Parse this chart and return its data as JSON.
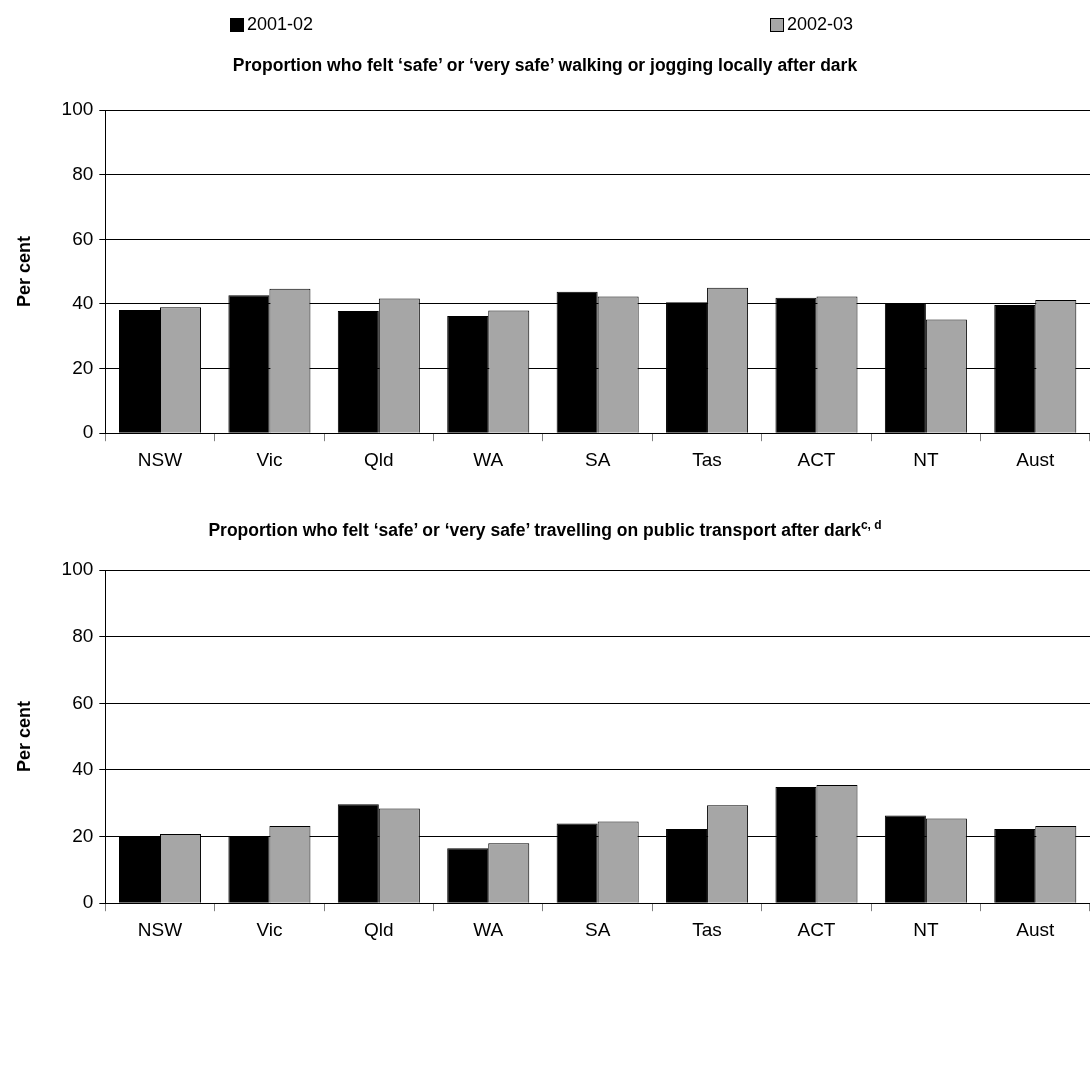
{
  "chart_data": [
    {
      "type": "bar",
      "title": "Proportion who felt ‘safe’ or ‘very safe’ walking or jogging locally after dark",
      "ylabel": "Per cent",
      "categories": [
        "NSW",
        "Vic",
        "Qld",
        "WA",
        "SA",
        "Tas",
        "ACT",
        "NT",
        "Aust"
      ],
      "series": [
        {
          "name": "2001-02",
          "color": "#000000",
          "values": [
            38.1,
            42.7,
            37.8,
            36.3,
            43.8,
            40.5,
            41.9,
            40.3,
            39.7
          ]
        },
        {
          "name": "2002-03",
          "color": "#a6a6a6",
          "values": [
            39.0,
            44.7,
            41.7,
            38.0,
            42.3,
            45.0,
            42.3,
            35.2,
            41.2
          ]
        }
      ],
      "ylim": [
        0,
        100
      ],
      "yticks": [
        0,
        20,
        40,
        60,
        80,
        100
      ],
      "grid": "y",
      "legend": "top"
    },
    {
      "type": "bar",
      "title": "Proportion who felt ‘safe’ or ‘very safe’ travelling on public transport after dark$^{c, d}$",
      "ylabel": "Per cent",
      "categories": [
        "NSW",
        "Vic",
        "Qld",
        "WA",
        "SA",
        "Tas",
        "ACT",
        "NT",
        "Aust"
      ],
      "series": [
        {
          "color": "#000000",
          "values": [
            20.2,
            20.2,
            29.7,
            16.5,
            23.9,
            22.3,
            34.9,
            26.3,
            22.3
          ]
        },
        {
          "color": "#a6a6a6",
          "values": [
            20.8,
            23.2,
            28.4,
            18.0,
            24.5,
            29.4,
            35.5,
            25.4,
            23.2
          ]
        }
      ],
      "ylim": [
        0,
        100
      ],
      "yticks": [
        0,
        20,
        40,
        60,
        80,
        100
      ],
      "grid": "y"
    }
  ]
}
